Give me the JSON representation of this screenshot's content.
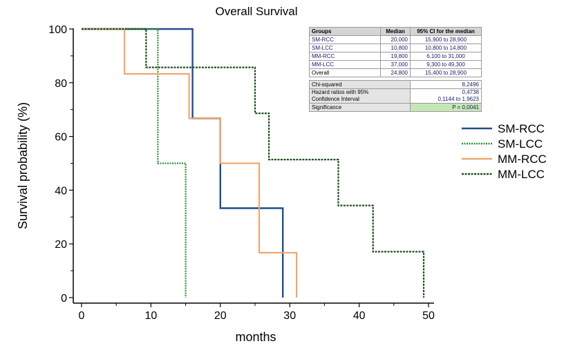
{
  "chart_data": {
    "type": "line",
    "step": true,
    "title": "Overall Survival",
    "xlabel": "months",
    "ylabel": "Survival probability (%)",
    "xlim": [
      0,
      50
    ],
    "ylim": [
      0,
      100
    ],
    "xticks": [
      0,
      10,
      20,
      30,
      40,
      50
    ],
    "yticks": [
      0,
      20,
      40,
      60,
      80,
      100
    ],
    "grid": false,
    "legend_position": "right",
    "series": [
      {
        "name": "SM-RCC",
        "color": "#1f4e8c",
        "style": "solid",
        "x": [
          0,
          16,
          16,
          20,
          20,
          29,
          29
        ],
        "y": [
          100,
          100,
          66.7,
          66.7,
          33.3,
          33.3,
          0
        ]
      },
      {
        "name": "SM-LCC",
        "color": "#2e8b2e",
        "style": "dotted",
        "x": [
          0,
          11,
          11,
          15,
          15
        ],
        "y": [
          100,
          100,
          50,
          50,
          0
        ]
      },
      {
        "name": "MM-RCC",
        "color": "#f0a66e",
        "style": "solid",
        "x": [
          0,
          6.2,
          6.2,
          15.5,
          15.5,
          20,
          20,
          25.6,
          25.6,
          31,
          31
        ],
        "y": [
          100,
          100,
          83.3,
          83.3,
          66.7,
          66.7,
          50,
          50,
          16.7,
          16.7,
          0
        ]
      },
      {
        "name": "MM-LCC",
        "color": "#1e4d1e",
        "style": "dashed",
        "x": [
          0,
          9.3,
          9.3,
          25,
          25,
          27,
          27,
          37,
          37,
          42,
          42,
          49.3,
          49.3
        ],
        "y": [
          100,
          100,
          85.7,
          85.7,
          68.6,
          68.6,
          51.4,
          51.4,
          34.3,
          34.3,
          17.1,
          17.1,
          0
        ]
      }
    ]
  },
  "table": {
    "headers": [
      "Groups",
      "Median",
      "95%  CI for the median"
    ],
    "rows": [
      [
        "SM-RCC",
        "20,000",
        "15,900  to 28,900"
      ],
      [
        "SM-LCC",
        "10,800",
        "10,800  to 14,800"
      ],
      [
        "MM-RCC",
        "19,800",
        "6,100  to 31,000"
      ],
      [
        "MM-LCC",
        "37,000",
        "9,300  to 49,300"
      ],
      [
        "Overall",
        "24,800",
        "15,400  to 28,900"
      ]
    ],
    "chi_label": "Chi-squared",
    "chi_value": "8,2496",
    "hr_label_1": "Hazard ratios with 95%",
    "hr_label_2": "Confidence  Interval",
    "hr_value_1": "0,4738",
    "hr_value_2": "0,1144  to 1,9623",
    "sig_label": "Significance",
    "sig_value": "P = 0,0041"
  }
}
